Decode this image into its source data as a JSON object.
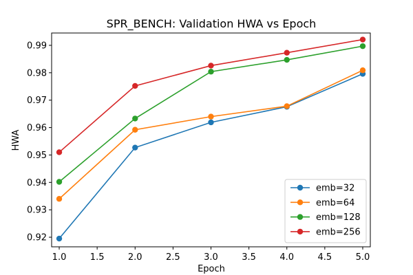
{
  "chart_data": {
    "type": "line",
    "title": "SPR_BENCH: Validation HWA vs Epoch",
    "xlabel": "Epoch",
    "ylabel": "HWA",
    "x": [
      1,
      2,
      3,
      4,
      5
    ],
    "xlim": [
      0.9,
      5.1
    ],
    "ylim": [
      0.9165,
      0.9945
    ],
    "xticks": [
      1.0,
      1.5,
      2.0,
      2.5,
      3.0,
      3.5,
      4.0,
      4.5,
      5.0
    ],
    "xtick_labels": [
      "1.0",
      "1.5",
      "2.0",
      "2.5",
      "3.0",
      "3.5",
      "4.0",
      "4.5",
      "5.0"
    ],
    "yticks": [
      0.92,
      0.93,
      0.94,
      0.95,
      0.96,
      0.97,
      0.98,
      0.99
    ],
    "ytick_labels": [
      "0.92",
      "0.93",
      "0.94",
      "0.95",
      "0.96",
      "0.97",
      "0.98",
      "0.99"
    ],
    "grid": false,
    "legend_position": "lower-right",
    "series": [
      {
        "name": "emb=32",
        "color": "#1f77b4",
        "values": [
          0.9195,
          0.9527,
          0.9619,
          0.9676,
          0.9796
        ]
      },
      {
        "name": "emb=64",
        "color": "#ff7f0e",
        "values": [
          0.934,
          0.9592,
          0.964,
          0.9678,
          0.9809
        ]
      },
      {
        "name": "emb=128",
        "color": "#2ca02c",
        "values": [
          0.9402,
          0.9633,
          0.9804,
          0.9847,
          0.9897
        ]
      },
      {
        "name": "emb=256",
        "color": "#d62728",
        "values": [
          0.951,
          0.9752,
          0.9826,
          0.9873,
          0.9921
        ]
      }
    ]
  }
}
